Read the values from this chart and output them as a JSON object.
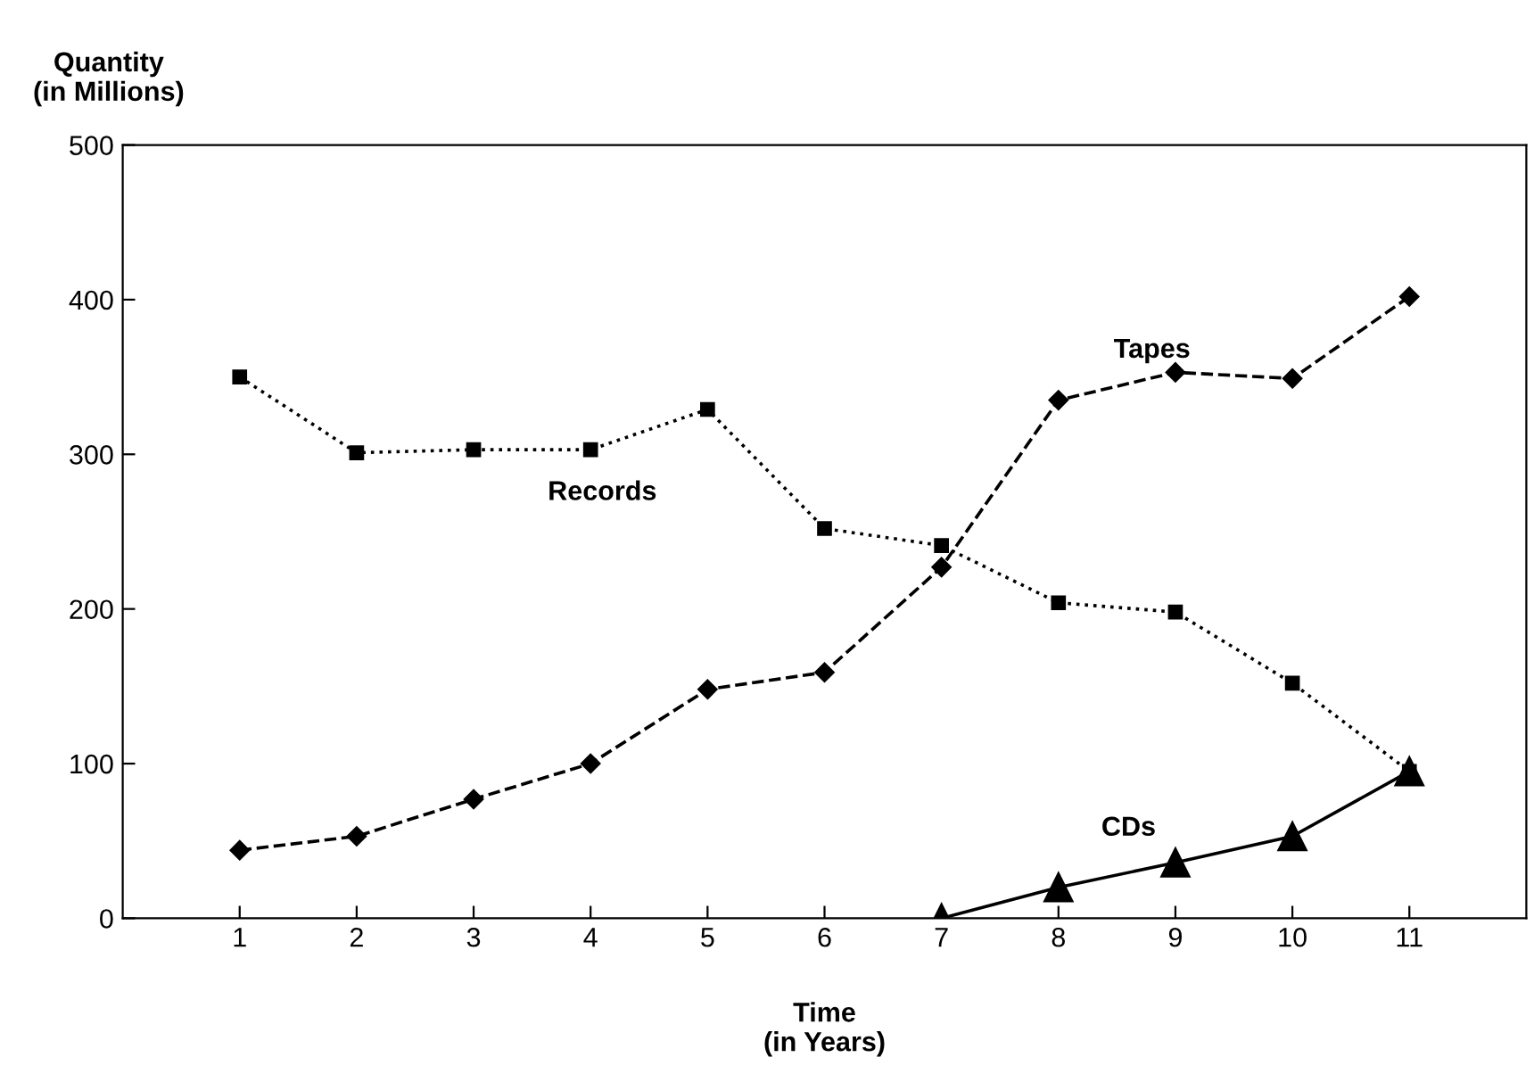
{
  "chart_data": {
    "type": "line",
    "xlabel": "Time\n(in Years)",
    "ylabel": "Quantity\n(in Millions)",
    "x": [
      1,
      2,
      3,
      4,
      5,
      6,
      7,
      8,
      9,
      10,
      11
    ],
    "series": [
      {
        "name": "Records",
        "color": "#000000",
        "marker": "square",
        "line_style": "dotted",
        "values": [
          350,
          301,
          303,
          303,
          329,
          252,
          241,
          204,
          198,
          152,
          95
        ]
      },
      {
        "name": "Tapes",
        "color": "#000000",
        "marker": "diamond",
        "line_style": "dashed",
        "values": [
          44,
          53,
          77,
          100,
          148,
          159,
          227,
          335,
          353,
          349,
          402
        ]
      },
      {
        "name": "CDs",
        "color": "#000000",
        "marker": "triangle",
        "line_style": "solid",
        "x": [
          7,
          8,
          9,
          10,
          11
        ],
        "values": [
          0,
          20,
          36,
          53,
          95
        ]
      }
    ],
    "xlim": [
      0,
      12
    ],
    "ylim": [
      0,
      500
    ],
    "xticks": [
      1,
      2,
      3,
      4,
      5,
      6,
      7,
      8,
      9,
      10,
      11
    ],
    "yticks": [
      0,
      100,
      200,
      300,
      400,
      500
    ],
    "grid": false,
    "legend": false
  }
}
